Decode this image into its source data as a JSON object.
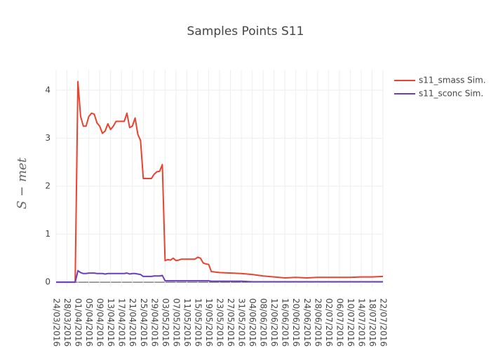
{
  "chart_data": {
    "type": "line",
    "title": "Samples Points S11",
    "ylabel": "S − met",
    "x": [
      "24/03/2016",
      "31/03/2016",
      "01/04/2016",
      "02/04/2016",
      "03/04/2016",
      "04/04/2016",
      "05/04/2016",
      "06/04/2016",
      "07/04/2016",
      "08/04/2016",
      "09/04/2016",
      "10/04/2016",
      "11/04/2016",
      "12/04/2016",
      "13/04/2016",
      "14/04/2016",
      "15/04/2016",
      "18/04/2016",
      "19/04/2016",
      "20/04/2016",
      "21/04/2016",
      "22/04/2016",
      "23/04/2016",
      "24/04/2016",
      "25/04/2016",
      "28/04/2016",
      "29/04/2016",
      "30/04/2016",
      "01/05/2016",
      "02/05/2016",
      "03/05/2016",
      "04/05/2016",
      "05/05/2016",
      "06/05/2016",
      "07/05/2016",
      "08/05/2016",
      "09/05/2016",
      "14/05/2016",
      "15/05/2016",
      "16/05/2016",
      "17/05/2016",
      "18/05/2016",
      "19/05/2016",
      "20/05/2016",
      "23/05/2016",
      "31/05/2016",
      "04/06/2016",
      "08/06/2016",
      "12/06/2016",
      "16/06/2016",
      "20/06/2016",
      "24/06/2016",
      "28/06/2016",
      "02/07/2016",
      "06/07/2016",
      "10/07/2016",
      "14/07/2016",
      "18/07/2016",
      "22/07/2016"
    ],
    "series": [
      {
        "name": "s11_smass Sim.",
        "color": "#e8432e",
        "values": [
          0,
          0,
          4.18,
          3.45,
          3.25,
          3.25,
          3.45,
          3.52,
          3.5,
          3.32,
          3.25,
          3.1,
          3.15,
          3.3,
          3.18,
          3.25,
          3.35,
          3.35,
          3.52,
          3.22,
          3.25,
          3.42,
          3.08,
          2.95,
          2.16,
          2.16,
          2.25,
          2.3,
          2.31,
          2.45,
          0.45,
          0.47,
          0.46,
          0.5,
          0.45,
          0.46,
          0.48,
          0.48,
          0.52,
          0.5,
          0.4,
          0.38,
          0.37,
          0.22,
          0.2,
          0.18,
          0.16,
          0.13,
          0.11,
          0.09,
          0.1,
          0.09,
          0.1,
          0.1,
          0.1,
          0.1,
          0.11,
          0.11,
          0.12
        ]
      },
      {
        "name": "s11_sconc Sim.",
        "color": "#6a3fbf",
        "values": [
          0,
          0,
          0.24,
          0.2,
          0.18,
          0.18,
          0.19,
          0.19,
          0.19,
          0.18,
          0.18,
          0.18,
          0.17,
          0.18,
          0.18,
          0.18,
          0.18,
          0.18,
          0.19,
          0.17,
          0.18,
          0.18,
          0.17,
          0.16,
          0.12,
          0.12,
          0.13,
          0.13,
          0.13,
          0.14,
          0.03,
          0.03,
          0.03,
          0.03,
          0.03,
          0.03,
          0.03,
          0.03,
          0.03,
          0.03,
          0.03,
          0.03,
          0.03,
          0.02,
          0.02,
          0.02,
          0.01,
          0.01,
          0.01,
          0.01,
          0.01,
          0.01,
          0.01,
          0.01,
          0.01,
          0.01,
          0.01,
          0.01,
          0.01
        ]
      }
    ],
    "xlim": [
      "24/03/2016",
      "22/07/2016"
    ],
    "xticks": [
      "24/03/2016",
      "28/03/2016",
      "01/04/2016",
      "05/04/2016",
      "09/04/2016",
      "13/04/2016",
      "17/04/2016",
      "21/04/2016",
      "25/04/2016",
      "29/04/2016",
      "03/05/2016",
      "07/05/2016",
      "11/05/2016",
      "15/05/2016",
      "19/05/2016",
      "23/05/2016",
      "27/05/2016",
      "31/05/2016",
      "04/06/2016",
      "08/06/2016",
      "12/06/2016",
      "16/06/2016",
      "20/06/2016",
      "24/06/2016",
      "28/06/2016",
      "02/07/2016",
      "06/07/2016",
      "10/07/2016",
      "14/07/2016",
      "18/07/2016",
      "22/07/2016"
    ],
    "ylim": [
      -0.1,
      4.42
    ],
    "yticks": [
      0,
      1,
      2,
      3,
      4
    ],
    "grid": true,
    "legend": "top-right"
  }
}
